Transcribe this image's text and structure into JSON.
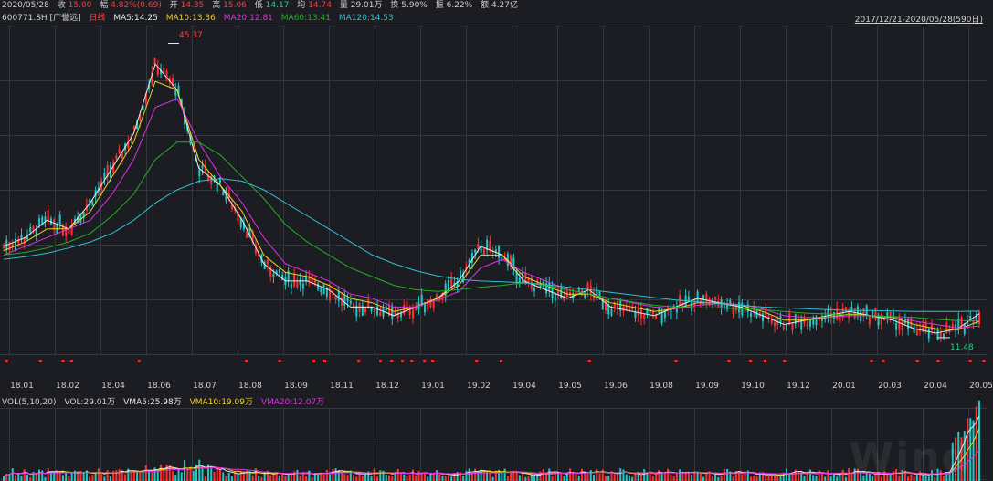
{
  "header": {
    "date": "2020/05/28",
    "close_label": "收",
    "close": "15.00",
    "change_label": "幅",
    "change": "4.82%(0.69)",
    "open_label": "开",
    "open": "14.35",
    "high_label": "高",
    "high": "15.06",
    "low_label": "低",
    "low": "14.17",
    "avg_label": "均",
    "avg": "14.74",
    "volume_label": "量",
    "volume": "29.01万",
    "turnover_label": "换",
    "turnover": "5.90%",
    "amplitude_label": "振",
    "amplitude": "6.22%",
    "amount_label": "额",
    "amount": "4.27亿"
  },
  "legend": {
    "ticker": "600771.SH [广誉远]",
    "period": "日线",
    "ma5": "MA5:14.25",
    "ma10": "MA10:13.36",
    "ma20": "MA20:12.81",
    "ma60": "MA60:13.41",
    "ma120": "MA120:14.53",
    "date_range": "2017/12/21-2020/05/28(590日)"
  },
  "vol_header": {
    "indicator": "VOL(5,10,20)",
    "vol": "VOL:29.01万",
    "vma5": "VMA5:25.98万",
    "vma10": "VMA10:19.09万",
    "vma20": "VMA20:12.07万"
  },
  "annotations": {
    "high_label": "45.37",
    "low_label": "11.48"
  },
  "watermark": "Wind",
  "colors": {
    "background": "#1b1d22",
    "grid": "#34373d",
    "up": "#ff3030",
    "down": "#20c8c8",
    "ma5": "#e8e8e8",
    "ma10": "#f0d020",
    "ma20": "#e030e0",
    "ma60": "#20b020",
    "ma120": "#30c0d0"
  },
  "chart_data": {
    "type": "line",
    "title": "",
    "xlabel": "",
    "ylabel": "",
    "ylim": [
      10,
      47
    ],
    "x_ticks": [
      "18.01",
      "18.02",
      "18.04",
      "18.06",
      "18.07",
      "18.08",
      "18.09",
      "18.11",
      "18.12",
      "19.01",
      "19.02",
      "19.04",
      "19.05",
      "19.06",
      "19.08",
      "19.09",
      "19.10",
      "19.12",
      "20.01",
      "20.03",
      "20.04",
      "20.05"
    ],
    "series": [
      {
        "name": "MA5",
        "values": [
          22,
          23,
          25,
          24,
          27,
          31,
          35,
          43,
          40,
          31,
          29,
          25,
          20,
          18,
          18,
          17,
          15,
          15,
          14,
          15,
          16,
          18,
          22,
          21,
          18,
          17,
          16,
          17,
          15,
          14.5,
          14,
          15,
          16,
          15.5,
          15,
          14,
          13,
          13.5,
          14,
          14.5,
          14,
          13.5,
          12.5,
          12,
          12.5,
          14.25
        ]
      },
      {
        "name": "MA10",
        "values": [
          21.5,
          22.5,
          24,
          24,
          26,
          30,
          34,
          41,
          40,
          32,
          29,
          26,
          21,
          19,
          18.5,
          17.5,
          16,
          15.5,
          14.5,
          15,
          16,
          17.5,
          21,
          21,
          18.5,
          17.5,
          16.5,
          16.5,
          15.5,
          15,
          14.5,
          14.8,
          15.5,
          15.5,
          15.2,
          14.5,
          13.5,
          13.5,
          13.8,
          14.2,
          14,
          13.8,
          13,
          12.5,
          12.4,
          13.36
        ]
      },
      {
        "name": "MA20",
        "values": [
          21,
          22,
          23,
          24,
          25,
          28,
          32,
          38,
          39,
          34,
          30,
          27,
          23,
          20,
          19,
          18,
          16.5,
          16,
          15,
          15,
          15.8,
          16.8,
          19.5,
          20.5,
          19,
          18,
          17,
          16.5,
          16,
          15.5,
          15,
          14.8,
          15.2,
          15.4,
          15.3,
          14.8,
          14,
          13.8,
          13.8,
          14,
          14,
          13.9,
          13.4,
          13,
          12.6,
          12.81
        ]
      },
      {
        "name": "MA60",
        "values": [
          21,
          21.3,
          21.8,
          22.5,
          23.5,
          25.5,
          28,
          32,
          34,
          34,
          32.5,
          30,
          27.5,
          24.5,
          22.5,
          21,
          19.5,
          18.5,
          17.5,
          17,
          16.8,
          17,
          17.3,
          17.5,
          17.8,
          17.5,
          17,
          16.5,
          16,
          15.6,
          15.2,
          15,
          14.9,
          14.9,
          14.8,
          14.7,
          14.5,
          14.3,
          14.2,
          14.1,
          14,
          13.9,
          13.8,
          13.6,
          13.45,
          13.41
        ]
      },
      {
        "name": "MA120",
        "values": [
          20.5,
          20.8,
          21.2,
          21.8,
          22.5,
          23.5,
          25,
          27,
          28.5,
          29.5,
          29.8,
          29.5,
          28.5,
          27,
          25.5,
          24,
          22.5,
          21,
          20,
          19.2,
          18.6,
          18.2,
          18,
          17.9,
          17.8,
          17.6,
          17.3,
          17,
          16.7,
          16.4,
          16.1,
          15.8,
          15.6,
          15.4,
          15.2,
          15,
          14.9,
          14.8,
          14.7,
          14.6,
          14.6,
          14.55,
          14.5,
          14.5,
          14.5,
          14.53
        ]
      }
    ],
    "price_high": 45.37,
    "price_low": 11.48,
    "volume": {
      "series": [
        {
          "name": "VOL",
          "last": 29.01
        },
        {
          "name": "VMA5",
          "last": 25.98
        },
        {
          "name": "VMA10",
          "last": 19.09
        },
        {
          "name": "VMA20",
          "last": 12.07
        }
      ]
    }
  }
}
